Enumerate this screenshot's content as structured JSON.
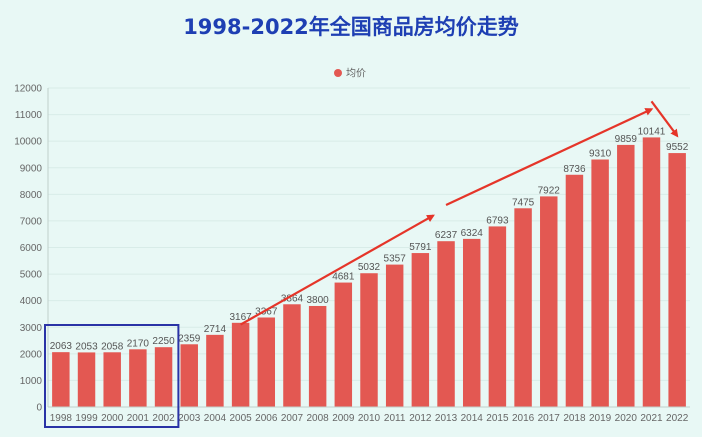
{
  "title": "1998-2022年全国商品房均价走势",
  "colors": {
    "title": "#1e3fb3",
    "bar": "#e35852",
    "arrow": "#e53529",
    "highlight_box": "#2a33a6",
    "gridline": "#d8ece8",
    "axis": "#c0cfcc"
  },
  "chart_data": {
    "type": "bar",
    "title": "1998-2022年全国商品房均价走势",
    "xlabel": "",
    "ylabel": "",
    "legend_position": "top-center",
    "grid": true,
    "ylim": [
      0,
      12000
    ],
    "y_ticks": [
      0,
      1000,
      2000,
      3000,
      4000,
      5000,
      6000,
      7000,
      8000,
      9000,
      10000,
      11000,
      12000
    ],
    "categories": [
      "1998",
      "1999",
      "2000",
      "2001",
      "2002",
      "2003",
      "2004",
      "2005",
      "2006",
      "2007",
      "2008",
      "2009",
      "2010",
      "2011",
      "2012",
      "2013",
      "2014",
      "2015",
      "2016",
      "2017",
      "2018",
      "2019",
      "2020",
      "2021",
      "2022"
    ],
    "series": [
      {
        "name": "均价",
        "values": [
          2063,
          2053,
          2058,
          2170,
          2250,
          2359,
          2714,
          3167,
          3367,
          3864,
          3800,
          4681,
          5032,
          5357,
          5791,
          6237,
          6324,
          6793,
          7475,
          7922,
          8736,
          9310,
          9859,
          10141,
          9552
        ]
      }
    ],
    "annotations": {
      "highlight_box_categories": [
        "1998",
        "2002"
      ],
      "trend_arrows": [
        {
          "from": [
            "2005",
            3100
          ],
          "to": [
            "2012.5",
            7200
          ]
        },
        {
          "from": [
            "2013",
            7600
          ],
          "to": [
            "2021",
            11200
          ]
        },
        {
          "from": [
            "2021",
            11500
          ],
          "to": [
            "2022",
            10200
          ]
        }
      ]
    }
  }
}
